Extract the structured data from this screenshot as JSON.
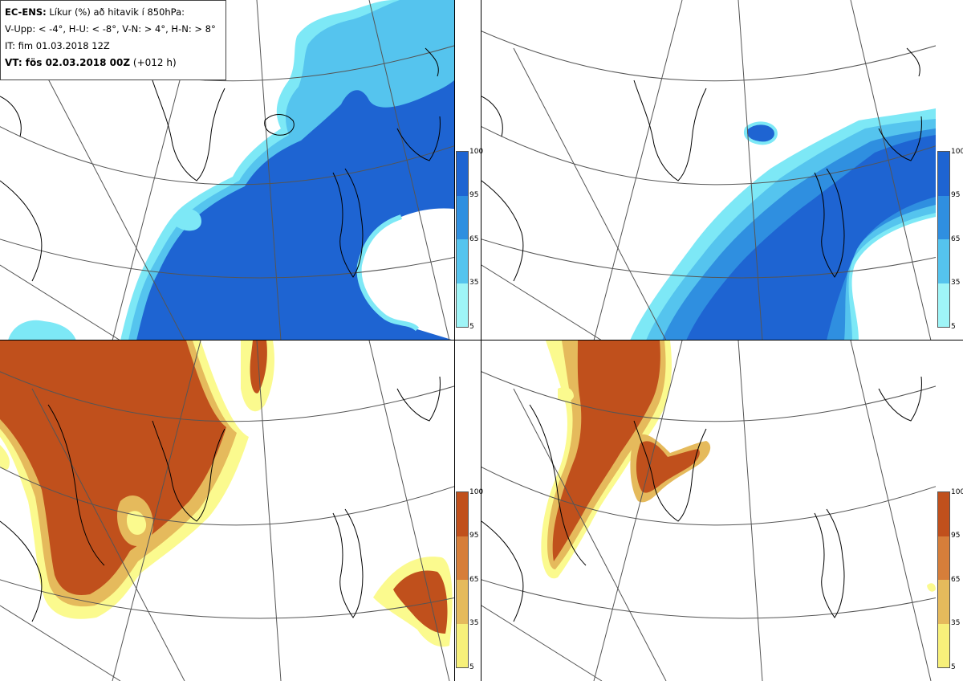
{
  "info": {
    "line1_bold": "EC-ENS:",
    "line1_rest": "Líkur (%) að hitavik í 850hPa:",
    "line2": "V-Upp: < -4°, H-U: < -8°, V-N: > 4°, H-N: > 8°",
    "line3": "IT: fim 01.03.2018 12Z",
    "line4_bold": "VT: fös 02.03.2018 00Z",
    "line4_rest": "(+012 h)"
  },
  "legend_ticks": [
    "100",
    "95",
    "65",
    "35",
    "5"
  ],
  "colors": {
    "blue_100": "#1e64d2",
    "blue_95": "#2f8fe0",
    "blue_65": "#55c4ee",
    "blue_35": "#7de8f6",
    "blue_5": "#b8fbfb",
    "orange_100": "#c0501c",
    "orange_95": "#d67e3a",
    "orange_65": "#e5ba5c",
    "orange_35": "#f3e268",
    "orange_5": "#fbfa8e"
  }
}
